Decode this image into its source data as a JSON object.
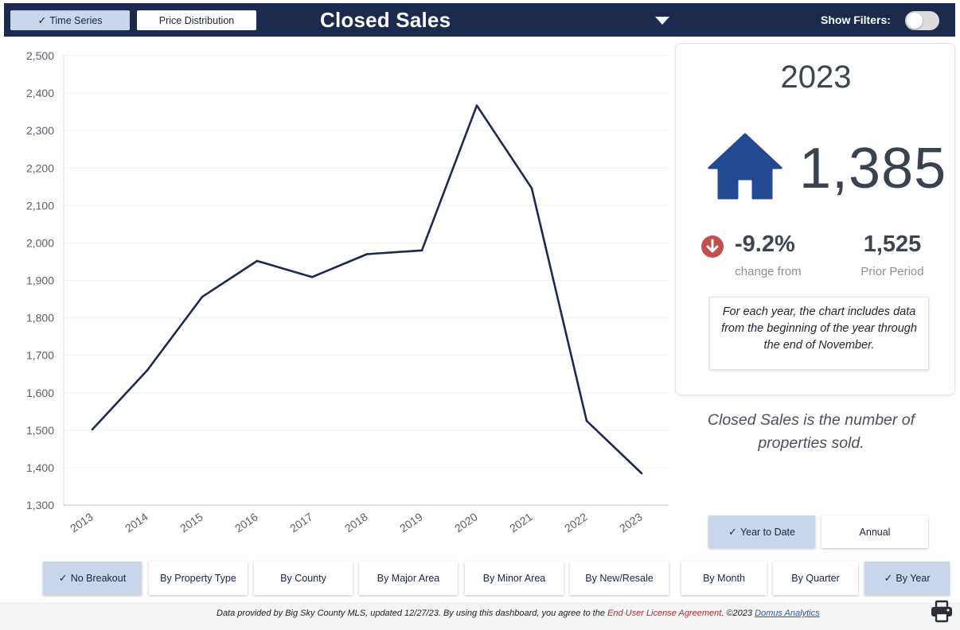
{
  "header": {
    "tabs": [
      {
        "label": "Time Series",
        "active": true
      },
      {
        "label": "Price Distribution",
        "active": false
      }
    ],
    "title": "Closed Sales",
    "filters_label": "Show Filters:",
    "filters_on": false,
    "colors": {
      "bar": "#1c2a4e",
      "active_button": "#c9d6ea"
    },
    "icons": [
      "check-icon",
      "dropdown-caret-icon",
      "toggle-switch"
    ]
  },
  "chart_data": {
    "type": "line",
    "x": [
      "2013",
      "2014",
      "2015",
      "2016",
      "2017",
      "2018",
      "2019",
      "2020",
      "2021",
      "2022",
      "2023"
    ],
    "series": [
      {
        "values": [
          1502,
          1660,
          1856,
          1952,
          1909,
          1970,
          1980,
          2367,
          2146,
          1525,
          1385
        ]
      }
    ],
    "y_ticks": [
      "1,300",
      "1,400",
      "1,500",
      "1,600",
      "1,700",
      "1,800",
      "1,900",
      "2,000",
      "2,100",
      "2,200",
      "2,300",
      "2,400",
      "2,500"
    ],
    "ylim": [
      1300,
      2500
    ],
    "grid": true,
    "line_color": "#1c2a4e"
  },
  "stats": {
    "year": "2023",
    "value": "1,385",
    "change": "-9.2%",
    "change_label": "change from",
    "prior_value": "1,525",
    "prior_label": "Prior Period",
    "note": "For each year, the chart includes data from the beginning of the year through the end of November.",
    "icons": [
      "house-icon",
      "down-arrow-circle-icon"
    ],
    "colors": {
      "house": "#244a92",
      "down": "#c0504d"
    }
  },
  "definition": "Closed Sales is the number of properties sold.",
  "period_buttons": [
    {
      "label": "Year to Date",
      "active": true
    },
    {
      "label": "Annual",
      "active": false
    }
  ],
  "breakout_buttons": [
    {
      "label": "No Breakout",
      "active": true
    },
    {
      "label": "By Property Type",
      "active": false
    },
    {
      "label": "By County",
      "active": false
    },
    {
      "label": "By Major Area",
      "active": false
    },
    {
      "label": "By Minor Area",
      "active": false
    },
    {
      "label": "By New/Resale",
      "active": false
    },
    {
      "label": "By Month",
      "active": false
    },
    {
      "label": "By Quarter",
      "active": false
    },
    {
      "label": "By Year",
      "active": true
    }
  ],
  "footer": {
    "text_prefix": "Data provided by Big Sky County MLS, updated 12/27/23.  By using this dashboard, you agree to the ",
    "license_link": "End User License Agreement",
    "text_mid": ".  ©2023 ",
    "company_link": "Domus Analytics",
    "icons": [
      "printer-icon"
    ]
  }
}
